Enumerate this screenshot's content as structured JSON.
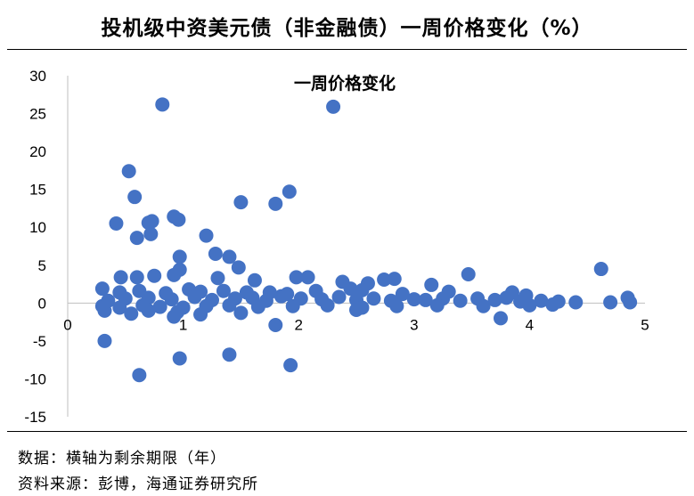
{
  "header": {
    "title": "投机级中资美元债（非金融债）一周价格变化（%）"
  },
  "footer": {
    "note": "数据：横轴为剩余期限（年）",
    "source": "资料来源：彭博，海通证券研究所"
  },
  "chart_data": {
    "type": "scatter",
    "title": "一周价格变化",
    "xlabel": "",
    "ylabel": "",
    "xlim": [
      0,
      5
    ],
    "ylim": [
      -15,
      30
    ],
    "x_ticks": [
      0,
      1,
      2,
      3,
      4,
      5
    ],
    "y_ticks": [
      30,
      25,
      20,
      15,
      10,
      5,
      0,
      -5,
      -10,
      -15
    ],
    "grid": false,
    "legend": "none",
    "marker_color": "#4472C4",
    "series": [
      {
        "points": [
          [
            0.82,
            26.2
          ],
          [
            2.3,
            25.9
          ],
          [
            0.53,
            17.4
          ],
          [
            0.58,
            14.0
          ],
          [
            1.92,
            14.7
          ],
          [
            1.5,
            13.3
          ],
          [
            1.8,
            13.1
          ],
          [
            0.42,
            10.5
          ],
          [
            0.7,
            10.6
          ],
          [
            0.73,
            10.8
          ],
          [
            0.92,
            11.4
          ],
          [
            0.96,
            11.0
          ],
          [
            0.6,
            8.6
          ],
          [
            0.72,
            9.1
          ],
          [
            1.2,
            8.9
          ],
          [
            0.97,
            6.1
          ],
          [
            1.28,
            6.5
          ],
          [
            1.4,
            6.1
          ],
          [
            1.48,
            4.7
          ],
          [
            0.92,
            3.7
          ],
          [
            0.97,
            4.4
          ],
          [
            0.6,
            3.4
          ],
          [
            0.75,
            3.6
          ],
          [
            0.46,
            3.4
          ],
          [
            1.3,
            3.3
          ],
          [
            1.62,
            3.0
          ],
          [
            1.98,
            3.4
          ],
          [
            2.08,
            3.4
          ],
          [
            2.38,
            2.8
          ],
          [
            2.6,
            2.6
          ],
          [
            2.74,
            3.1
          ],
          [
            2.83,
            3.2
          ],
          [
            3.15,
            2.4
          ],
          [
            3.47,
            3.8
          ],
          [
            4.62,
            4.5
          ],
          [
            0.3,
            1.9
          ],
          [
            0.45,
            1.4
          ],
          [
            0.62,
            1.6
          ],
          [
            0.85,
            1.3
          ],
          [
            1.05,
            1.8
          ],
          [
            1.15,
            1.5
          ],
          [
            1.35,
            1.6
          ],
          [
            1.55,
            1.4
          ],
          [
            1.75,
            1.4
          ],
          [
            1.9,
            1.2
          ],
          [
            2.15,
            1.6
          ],
          [
            2.45,
            1.9
          ],
          [
            2.55,
            1.7
          ],
          [
            2.9,
            1.2
          ],
          [
            3.3,
            1.5
          ],
          [
            3.85,
            1.4
          ],
          [
            3.97,
            1.0
          ],
          [
            0.35,
            0.3
          ],
          [
            0.5,
            0.6
          ],
          [
            0.7,
            0.7
          ],
          [
            0.9,
            0.5
          ],
          [
            1.1,
            0.8
          ],
          [
            1.25,
            0.4
          ],
          [
            1.45,
            0.6
          ],
          [
            1.6,
            0.7
          ],
          [
            1.72,
            0.3
          ],
          [
            1.85,
            0.9
          ],
          [
            2.02,
            0.6
          ],
          [
            2.2,
            0.5
          ],
          [
            2.35,
            0.8
          ],
          [
            2.5,
            0.4
          ],
          [
            2.65,
            0.6
          ],
          [
            2.8,
            0.3
          ],
          [
            3.0,
            0.5
          ],
          [
            3.1,
            0.4
          ],
          [
            3.25,
            0.6
          ],
          [
            3.4,
            0.3
          ],
          [
            3.55,
            0.6
          ],
          [
            3.7,
            0.4
          ],
          [
            3.8,
            0.7
          ],
          [
            3.92,
            0.2
          ],
          [
            4.1,
            0.3
          ],
          [
            4.25,
            0.2
          ],
          [
            4.4,
            0.1
          ],
          [
            4.7,
            0.1
          ],
          [
            4.85,
            0.7
          ],
          [
            4.87,
            0.1
          ],
          [
            0.3,
            -0.4
          ],
          [
            0.45,
            -0.6
          ],
          [
            0.65,
            -0.3
          ],
          [
            0.8,
            -0.5
          ],
          [
            1.0,
            -0.6
          ],
          [
            1.2,
            -0.4
          ],
          [
            1.4,
            -0.3
          ],
          [
            1.65,
            -0.5
          ],
          [
            1.95,
            -0.4
          ],
          [
            2.25,
            -0.3
          ],
          [
            2.55,
            -0.6
          ],
          [
            2.85,
            -0.4
          ],
          [
            3.2,
            -0.3
          ],
          [
            3.6,
            -0.4
          ],
          [
            4.0,
            -0.3
          ],
          [
            4.2,
            -0.2
          ],
          [
            0.32,
            -1.0
          ],
          [
            0.55,
            -1.4
          ],
          [
            0.7,
            -1.0
          ],
          [
            0.95,
            -1.2
          ],
          [
            1.15,
            -1.5
          ],
          [
            1.5,
            -1.3
          ],
          [
            2.5,
            -0.9
          ],
          [
            0.92,
            -1.8
          ],
          [
            3.75,
            -2.0
          ],
          [
            1.8,
            -2.9
          ],
          [
            0.32,
            -5.0
          ],
          [
            1.4,
            -6.8
          ],
          [
            0.97,
            -7.3
          ],
          [
            1.93,
            -8.2
          ],
          [
            0.62,
            -9.5
          ]
        ]
      }
    ]
  }
}
